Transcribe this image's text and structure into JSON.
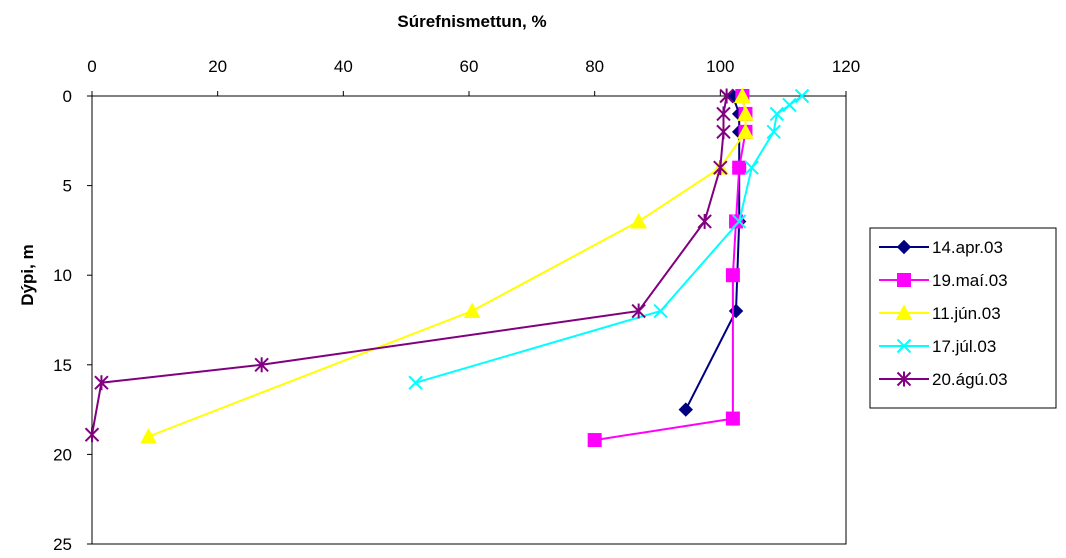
{
  "chart_data": {
    "type": "line",
    "title": "",
    "xlabel": "Súrefnismettun, %",
    "ylabel": "Dýpi, m",
    "xlim": [
      0,
      120
    ],
    "ylim": [
      0,
      25
    ],
    "y_inverted": true,
    "x_axis_position": "top",
    "x_ticks": [
      "0",
      "20",
      "40",
      "60",
      "80",
      "100",
      "120"
    ],
    "y_ticks": [
      "0",
      "5",
      "10",
      "15",
      "20",
      "25"
    ],
    "grid": false,
    "legend_position": "right",
    "series": [
      {
        "name": "14.apr.03",
        "color": "#000080",
        "marker": "diamond",
        "points": [
          [
            102,
            0
          ],
          [
            103,
            1
          ],
          [
            103,
            2
          ],
          [
            103,
            4
          ],
          [
            103,
            7
          ],
          [
            102.5,
            12
          ],
          [
            94.5,
            17.5
          ]
        ]
      },
      {
        "name": "19.maí.03",
        "color": "#ff00ff",
        "marker": "square",
        "points": [
          [
            103.5,
            0
          ],
          [
            104,
            1
          ],
          [
            104,
            2
          ],
          [
            103,
            4
          ],
          [
            102.5,
            7
          ],
          [
            102,
            10
          ],
          [
            102,
            18
          ],
          [
            80,
            19.2
          ]
        ]
      },
      {
        "name": "11.jún.03",
        "color": "#ffff00",
        "marker": "triangle",
        "points": [
          [
            103.5,
            0
          ],
          [
            104,
            1
          ],
          [
            104,
            2
          ],
          [
            100,
            4
          ],
          [
            87,
            7
          ],
          [
            60.5,
            12
          ],
          [
            9,
            19
          ]
        ]
      },
      {
        "name": "17.júl.03",
        "color": "#00ffff",
        "marker": "x",
        "points": [
          [
            113,
            0
          ],
          [
            111,
            0.5
          ],
          [
            109,
            1
          ],
          [
            108.5,
            2
          ],
          [
            105,
            4
          ],
          [
            103,
            7
          ],
          [
            90.5,
            12
          ],
          [
            51.5,
            16
          ]
        ]
      },
      {
        "name": "20.ágú.03",
        "color": "#800080",
        "marker": "star",
        "points": [
          [
            101,
            0
          ],
          [
            100.5,
            1
          ],
          [
            100.5,
            2
          ],
          [
            100,
            4
          ],
          [
            97.5,
            7
          ],
          [
            87,
            12
          ],
          [
            27,
            15
          ],
          [
            1.5,
            16
          ],
          [
            0,
            18.9
          ]
        ]
      }
    ]
  }
}
